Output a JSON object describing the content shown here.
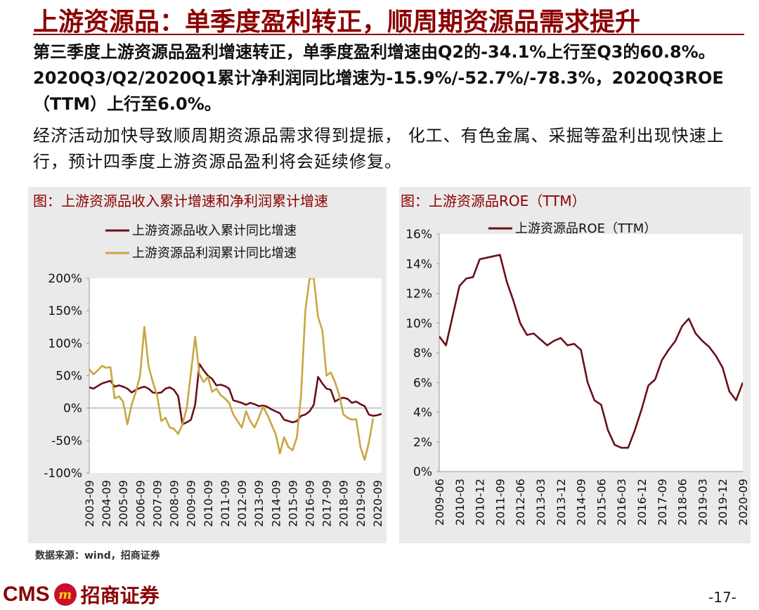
{
  "title": "上游资源品：单季度盈利转正，顺周期资源品需求提升",
  "paragraphs": [
    "第三季度上游资源品盈利增速转正，单季度盈利增速由Q2的-34.1%上行至Q3的60.8%。2020Q3/Q2/2020Q1累计净利润同比增速为-15.9%/-52.7%/-78.3%，2020Q3ROE（TTM）上行至6.0%。",
    "经济活动加快导致顺周期资源品需求得到提振， 化工、有色金属、采掘等盈利出现快速上行，预计四季度上游资源品盈利将会延续修复。"
  ],
  "chart_data": [
    {
      "type": "line",
      "title": "图：上游资源品收入累计增速和净利润累计增速",
      "xlabel": "",
      "ylabel": "",
      "ylim": [
        -100,
        200
      ],
      "yticks": [
        -100,
        -50,
        0,
        50,
        100,
        150,
        200
      ],
      "ytick_labels": [
        "-100%",
        "-50%",
        "0%",
        "50%",
        "100%",
        "150%",
        "200%"
      ],
      "x_ticks": [
        "2003-09",
        "2004-09",
        "2005-09",
        "2006-09",
        "2007-09",
        "2008-09",
        "2009-09",
        "2010-09",
        "2011-09",
        "2012-09",
        "2013-09",
        "2014-09",
        "2015-09",
        "2016-09",
        "2017-09",
        "2018-09",
        "2019-09",
        "2020-09"
      ],
      "x_range": [
        2003.5,
        2020.75
      ],
      "grid": false,
      "legend": "top",
      "series": [
        {
          "name": "上游资源品收入累计同比增速",
          "color": "#6b0f1a",
          "points": [
            [
              2003.5,
              32
            ],
            [
              2003.75,
              30
            ],
            [
              2004.0,
              34
            ],
            [
              2004.25,
              38
            ],
            [
              2004.5,
              40
            ],
            [
              2004.75,
              42
            ],
            [
              2005.0,
              33
            ],
            [
              2005.25,
              35
            ],
            [
              2005.5,
              33
            ],
            [
              2005.75,
              30
            ],
            [
              2006.0,
              24
            ],
            [
              2006.25,
              28
            ],
            [
              2006.5,
              31
            ],
            [
              2006.75,
              33
            ],
            [
              2007.0,
              30
            ],
            [
              2007.25,
              24
            ],
            [
              2007.5,
              23
            ],
            [
              2007.75,
              24
            ],
            [
              2008.0,
              30
            ],
            [
              2008.25,
              32
            ],
            [
              2008.5,
              28
            ],
            [
              2008.75,
              18
            ],
            [
              2009.0,
              -25
            ],
            [
              2009.25,
              -22
            ],
            [
              2009.5,
              -18
            ],
            [
              2009.75,
              5
            ],
            [
              2010.0,
              68
            ],
            [
              2010.25,
              58
            ],
            [
              2010.5,
              50
            ],
            [
              2010.75,
              45
            ],
            [
              2011.0,
              35
            ],
            [
              2011.25,
              36
            ],
            [
              2011.5,
              34
            ],
            [
              2011.75,
              30
            ],
            [
              2012.0,
              12
            ],
            [
              2012.25,
              10
            ],
            [
              2012.5,
              8
            ],
            [
              2012.75,
              5
            ],
            [
              2013.0,
              8
            ],
            [
              2013.25,
              6
            ],
            [
              2013.5,
              3
            ],
            [
              2013.75,
              4
            ],
            [
              2014.0,
              2
            ],
            [
              2014.25,
              -2
            ],
            [
              2014.5,
              -5
            ],
            [
              2014.75,
              -8
            ],
            [
              2015.0,
              -18
            ],
            [
              2015.25,
              -20
            ],
            [
              2015.5,
              -22
            ],
            [
              2015.75,
              -20
            ],
            [
              2016.0,
              -12
            ],
            [
              2016.25,
              -10
            ],
            [
              2016.5,
              -5
            ],
            [
              2016.75,
              5
            ],
            [
              2017.0,
              48
            ],
            [
              2017.25,
              38
            ],
            [
              2017.5,
              30
            ],
            [
              2017.75,
              28
            ],
            [
              2018.0,
              10
            ],
            [
              2018.25,
              14
            ],
            [
              2018.5,
              16
            ],
            [
              2018.75,
              14
            ],
            [
              2019.0,
              8
            ],
            [
              2019.25,
              10
            ],
            [
              2019.5,
              6
            ],
            [
              2019.75,
              3
            ],
            [
              2020.0,
              -10
            ],
            [
              2020.25,
              -12
            ],
            [
              2020.5,
              -11
            ],
            [
              2020.75,
              -9
            ]
          ]
        },
        {
          "name": "上游资源品利润累计同比增速",
          "color": "#c9a640",
          "points": [
            [
              2003.5,
              60
            ],
            [
              2003.75,
              52
            ],
            [
              2004.0,
              58
            ],
            [
              2004.25,
              65
            ],
            [
              2004.5,
              62
            ],
            [
              2004.75,
              63
            ],
            [
              2005.0,
              15
            ],
            [
              2005.25,
              18
            ],
            [
              2005.5,
              10
            ],
            [
              2005.75,
              -25
            ],
            [
              2006.0,
              5
            ],
            [
              2006.25,
              25
            ],
            [
              2006.5,
              50
            ],
            [
              2006.75,
              125
            ],
            [
              2007.0,
              65
            ],
            [
              2007.25,
              40
            ],
            [
              2007.5,
              20
            ],
            [
              2007.75,
              -20
            ],
            [
              2008.0,
              -15
            ],
            [
              2008.25,
              -30
            ],
            [
              2008.5,
              -32
            ],
            [
              2008.75,
              -40
            ],
            [
              2009.0,
              -25
            ],
            [
              2009.25,
              0
            ],
            [
              2009.5,
              55
            ],
            [
              2009.75,
              110
            ],
            [
              2010.0,
              52
            ],
            [
              2010.25,
              40
            ],
            [
              2010.5,
              48
            ],
            [
              2010.75,
              25
            ],
            [
              2011.0,
              30
            ],
            [
              2011.25,
              20
            ],
            [
              2011.5,
              15
            ],
            [
              2011.75,
              8
            ],
            [
              2012.0,
              -10
            ],
            [
              2012.25,
              -20
            ],
            [
              2012.5,
              -30
            ],
            [
              2012.75,
              -5
            ],
            [
              2013.0,
              -20
            ],
            [
              2013.25,
              -30
            ],
            [
              2013.5,
              -15
            ],
            [
              2013.75,
              2
            ],
            [
              2014.0,
              -10
            ],
            [
              2014.25,
              -25
            ],
            [
              2014.5,
              -40
            ],
            [
              2014.75,
              -70
            ],
            [
              2015.0,
              -45
            ],
            [
              2015.25,
              -60
            ],
            [
              2015.5,
              -65
            ],
            [
              2015.75,
              -45
            ],
            [
              2016.0,
              20
            ],
            [
              2016.25,
              150
            ],
            [
              2016.5,
              200
            ],
            [
              2016.75,
              200
            ],
            [
              2017.0,
              140
            ],
            [
              2017.25,
              120
            ],
            [
              2017.5,
              50
            ],
            [
              2017.75,
              55
            ],
            [
              2018.0,
              40
            ],
            [
              2018.25,
              20
            ],
            [
              2018.5,
              -10
            ],
            [
              2018.75,
              -15
            ],
            [
              2019.0,
              -18
            ],
            [
              2019.25,
              -17
            ],
            [
              2019.5,
              -60
            ],
            [
              2019.75,
              -80
            ],
            [
              2020.0,
              -53
            ],
            [
              2020.25,
              -16
            ]
          ]
        }
      ]
    },
    {
      "type": "line",
      "title": "图：上游资源品ROE（TTM）",
      "xlabel": "",
      "ylabel": "",
      "ylim": [
        0,
        16
      ],
      "yticks": [
        0,
        2,
        4,
        6,
        8,
        10,
        12,
        14,
        16
      ],
      "ytick_labels": [
        "0%",
        "2%",
        "4%",
        "6%",
        "8%",
        "10%",
        "12%",
        "14%",
        "16%"
      ],
      "x_ticks": [
        "2009-06",
        "2010-03",
        "2010-12",
        "2011-09",
        "2012-06",
        "2013-03",
        "2013-12",
        "2014-09",
        "2015-06",
        "2016-03",
        "2016-12",
        "2017-09",
        "2018-06",
        "2019-03",
        "2019-12",
        "2020-09"
      ],
      "x_range": [
        2009.5,
        2020.75
      ],
      "grid": false,
      "legend": "top",
      "series": [
        {
          "name": "上游资源品ROE（TTM）",
          "color": "#6b0f1a",
          "points": [
            [
              2009.5,
              9.1
            ],
            [
              2009.75,
              8.5
            ],
            [
              2010.0,
              10.5
            ],
            [
              2010.25,
              12.5
            ],
            [
              2010.5,
              13.0
            ],
            [
              2010.75,
              13.1
            ],
            [
              2011.0,
              14.3
            ],
            [
              2011.25,
              14.4
            ],
            [
              2011.5,
              14.5
            ],
            [
              2011.75,
              14.6
            ],
            [
              2012.0,
              12.8
            ],
            [
              2012.25,
              11.5
            ],
            [
              2012.5,
              10.0
            ],
            [
              2012.75,
              9.2
            ],
            [
              2013.0,
              9.3
            ],
            [
              2013.25,
              8.9
            ],
            [
              2013.5,
              8.5
            ],
            [
              2013.75,
              8.8
            ],
            [
              2014.0,
              9.0
            ],
            [
              2014.25,
              8.5
            ],
            [
              2014.5,
              8.6
            ],
            [
              2014.75,
              8.2
            ],
            [
              2015.0,
              6.0
            ],
            [
              2015.25,
              4.8
            ],
            [
              2015.5,
              4.5
            ],
            [
              2015.75,
              2.8
            ],
            [
              2016.0,
              1.8
            ],
            [
              2016.25,
              1.6
            ],
            [
              2016.5,
              1.6
            ],
            [
              2016.75,
              2.8
            ],
            [
              2017.0,
              4.2
            ],
            [
              2017.25,
              5.8
            ],
            [
              2017.5,
              6.2
            ],
            [
              2017.75,
              7.5
            ],
            [
              2018.0,
              8.2
            ],
            [
              2018.25,
              8.8
            ],
            [
              2018.5,
              9.8
            ],
            [
              2018.75,
              10.3
            ],
            [
              2019.0,
              9.3
            ],
            [
              2019.25,
              8.8
            ],
            [
              2019.5,
              8.4
            ],
            [
              2019.75,
              7.8
            ],
            [
              2020.0,
              7.0
            ],
            [
              2020.25,
              5.4
            ],
            [
              2020.5,
              4.8
            ],
            [
              2020.75,
              6.0
            ]
          ]
        }
      ]
    }
  ],
  "source": "数据来源：wind，招商证券",
  "logo": {
    "text": "CMS",
    "badge": "m",
    "name": "招商证券"
  },
  "page_number": "-17-",
  "colors": {
    "title": "#8b0000",
    "panel_bg": "#eaeaea"
  }
}
